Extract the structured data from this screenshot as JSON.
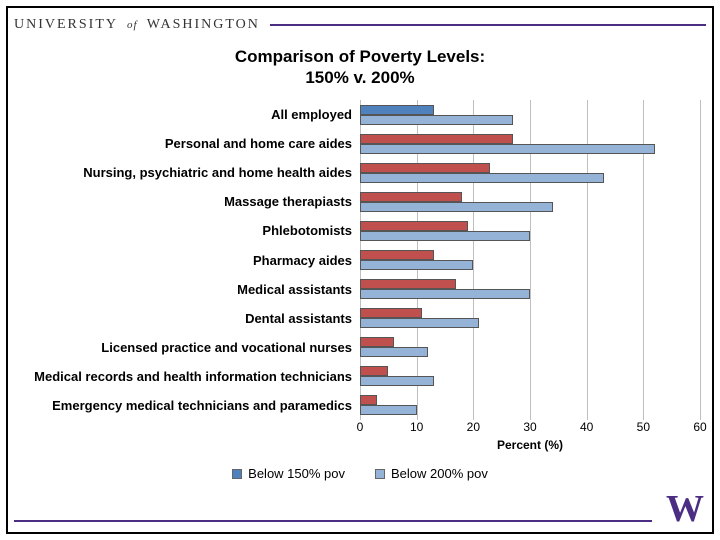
{
  "header": {
    "uni1": "UNIVERSITY",
    "of": "of",
    "uni2": "WASHINGTON"
  },
  "chart": {
    "type": "bar",
    "title_line1": "Comparison of Poverty Levels:",
    "title_line2": "150% v. 200%",
    "xlabel": "Percent (%)",
    "xmax": 60,
    "xtick_step": 10,
    "xticks": [
      "0",
      "10",
      "20",
      "30",
      "40",
      "50",
      "60"
    ],
    "series": [
      {
        "name": "Below 150% pov",
        "color": "#c0504d"
      },
      {
        "name": "Below 200% pov",
        "color": "#95b3d7"
      }
    ],
    "row_override": {
      "index": 0,
      "series0_color": "#4f81bd"
    },
    "categories": [
      {
        "label": "All employed",
        "v150": 13,
        "v200": 27
      },
      {
        "label": "Personal and home care aides",
        "v150": 27,
        "v200": 52
      },
      {
        "label": "Nursing, psychiatric and home health aides",
        "v150": 23,
        "v200": 43
      },
      {
        "label": "Massage therapiasts",
        "v150": 18,
        "v200": 34
      },
      {
        "label": "Phlebotomists",
        "v150": 19,
        "v200": 30
      },
      {
        "label": "Pharmacy aides",
        "v150": 13,
        "v200": 20
      },
      {
        "label": "Medical assistants",
        "v150": 17,
        "v200": 30
      },
      {
        "label": "Dental assistants",
        "v150": 11,
        "v200": 21
      },
      {
        "label": "Licensed practice and vocational nurses",
        "v150": 6,
        "v200": 12
      },
      {
        "label": "Medical records and health information technicians",
        "v150": 5,
        "v200": 13
      },
      {
        "label": "Emergency medical technicians and paramedics",
        "v150": 3,
        "v200": 10
      }
    ],
    "grid_color": "#bfbfbf",
    "background_color": "#ffffff"
  },
  "legend": {
    "item1": "Below 150% pov",
    "item2": "Below 200% pov"
  },
  "logo": {
    "text": "W"
  }
}
